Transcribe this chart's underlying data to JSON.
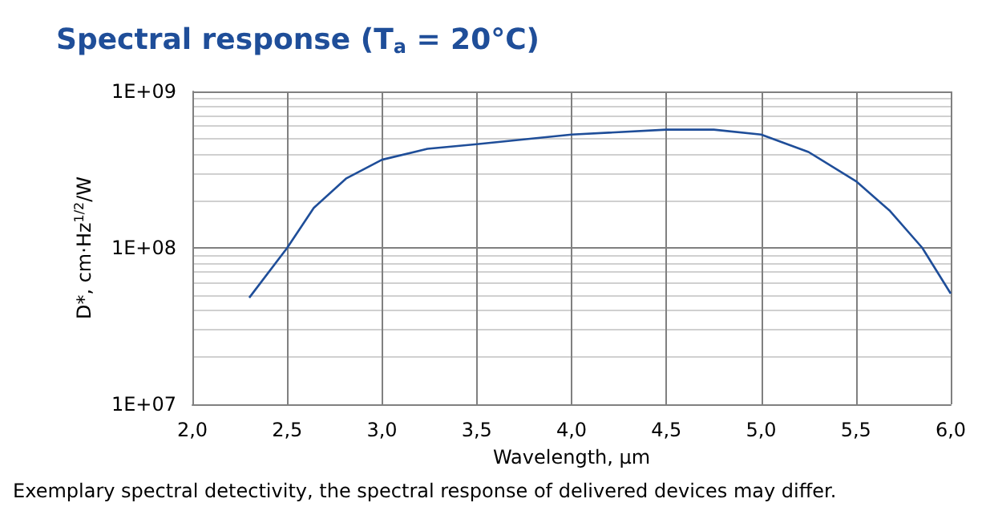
{
  "chart_data": {
    "type": "line",
    "title": "Spectral response (T$_{a}$ = 20°C)",
    "xlabel": "Wavelength, µm",
    "ylabel": "D*, cm·Hz$^{1/2}$/W",
    "annotations": [
      "Exemplary spectral detectivity, the spectral response of delivered devices may differ."
    ],
    "x": [
      2.3,
      2.5,
      2.64,
      2.81,
      3.0,
      3.24,
      3.5,
      4.0,
      4.5,
      4.75,
      5.0,
      5.25,
      5.5,
      5.68,
      5.85,
      6.0
    ],
    "series": [
      {
        "color": "#1f4e99",
        "values": [
          48000000.0,
          100000000.0,
          180000000.0,
          277000000.0,
          366000000.0,
          430000000.0,
          460000000.0,
          530000000.0,
          570000000.0,
          570000000.0,
          530000000.0,
          410000000.0,
          267000000.0,
          172000000.0,
          100000000.0,
          51000000.0
        ]
      }
    ],
    "xlim": [
      2,
      6
    ],
    "xticks": [
      {
        "value": 2,
        "label": "2,0"
      },
      {
        "value": 2.5,
        "label": "2,5"
      },
      {
        "value": 3,
        "label": "3,0"
      },
      {
        "value": 3.5,
        "label": "3,5"
      },
      {
        "value": 4,
        "label": "4,0"
      },
      {
        "value": 4.5,
        "label": "4,5"
      },
      {
        "value": 5,
        "label": "5,0"
      },
      {
        "value": 5.5,
        "label": "5,5"
      },
      {
        "value": 6,
        "label": "6,0"
      }
    ],
    "ylim": [
      10000000.0,
      1000000000.0
    ],
    "yticks": [
      {
        "value": 10000000.0,
        "label": "1E+07"
      },
      {
        "value": 100000000.0,
        "label": "1E+08"
      },
      {
        "value": 1000000000.0,
        "label": "1E+09"
      }
    ],
    "log": "y",
    "grid": true,
    "marker": "none",
    "line_style": "solid"
  }
}
